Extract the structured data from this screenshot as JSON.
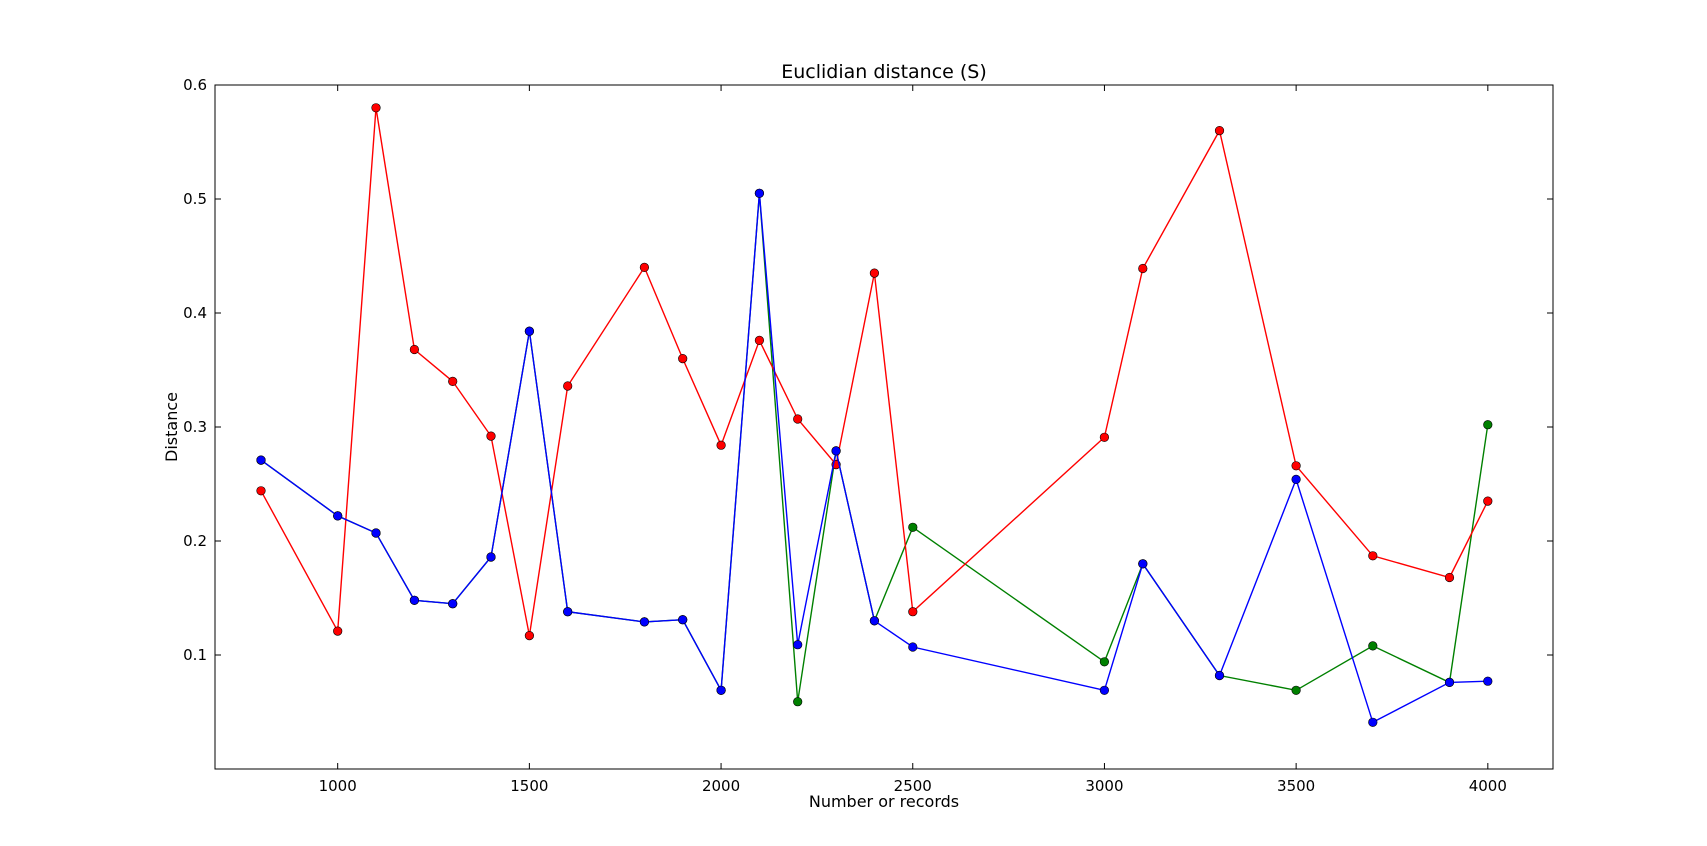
{
  "chart_data": {
    "type": "line",
    "title": "Euclidian distance (S)",
    "xlabel": "Number or records",
    "ylabel": "Distance",
    "xlim": [
      680,
      4170
    ],
    "ylim": [
      0.0,
      0.6
    ],
    "xticks": [
      1000,
      1500,
      2000,
      2500,
      3000,
      3500,
      4000
    ],
    "yticks": [
      0.1,
      0.2,
      0.3,
      0.4,
      0.5,
      0.6
    ],
    "xtick_labels": [
      "1000",
      "1500",
      "2000",
      "2500",
      "3000",
      "3500",
      "4000"
    ],
    "ytick_labels": [
      "0.1",
      "0.2",
      "0.3",
      "0.4",
      "0.5",
      "0.6"
    ],
    "grid": false,
    "legend": "none",
    "series": [
      {
        "color": "#008000",
        "points": [
          [
            800,
            0.271
          ],
          [
            1000,
            0.222
          ],
          [
            1100,
            0.207
          ],
          [
            1200,
            0.148
          ],
          [
            1300,
            0.145
          ],
          [
            1400,
            0.186
          ],
          [
            1500,
            0.384
          ],
          [
            1600,
            0.138
          ],
          [
            1800,
            0.129
          ],
          [
            1900,
            0.131
          ],
          [
            2000,
            0.069
          ],
          [
            2100,
            0.505
          ],
          [
            2200,
            0.059
          ],
          [
            2300,
            0.279
          ],
          [
            2400,
            0.13
          ],
          [
            2500,
            0.212
          ],
          [
            3000,
            0.094
          ],
          [
            3100,
            0.18
          ],
          [
            3300,
            0.082
          ],
          [
            3500,
            0.069
          ],
          [
            3700,
            0.108
          ],
          [
            3900,
            0.076
          ],
          [
            4000,
            0.302
          ]
        ]
      },
      {
        "color": "#ff0000",
        "points": [
          [
            800,
            0.244
          ],
          [
            1000,
            0.121
          ],
          [
            1100,
            0.58
          ],
          [
            1200,
            0.368
          ],
          [
            1300,
            0.34
          ],
          [
            1400,
            0.292
          ],
          [
            1500,
            0.117
          ],
          [
            1600,
            0.336
          ],
          [
            1800,
            0.44
          ],
          [
            1900,
            0.36
          ],
          [
            2000,
            0.284
          ],
          [
            2100,
            0.376
          ],
          [
            2200,
            0.307
          ],
          [
            2300,
            0.267
          ],
          [
            2400,
            0.435
          ],
          [
            2500,
            0.138
          ],
          [
            3000,
            0.291
          ],
          [
            3100,
            0.439
          ],
          [
            3300,
            0.56
          ],
          [
            3500,
            0.266
          ],
          [
            3700,
            0.187
          ],
          [
            3900,
            0.168
          ],
          [
            4000,
            0.235
          ]
        ]
      },
      {
        "color": "#0000ff",
        "points": [
          [
            800,
            0.271
          ],
          [
            1000,
            0.222
          ],
          [
            1100,
            0.207
          ],
          [
            1200,
            0.148
          ],
          [
            1300,
            0.145
          ],
          [
            1400,
            0.186
          ],
          [
            1500,
            0.384
          ],
          [
            1600,
            0.138
          ],
          [
            1800,
            0.129
          ],
          [
            1900,
            0.131
          ],
          [
            2000,
            0.069
          ],
          [
            2100,
            0.505
          ],
          [
            2200,
            0.109
          ],
          [
            2300,
            0.279
          ],
          [
            2400,
            0.13
          ],
          [
            2500,
            0.107
          ],
          [
            3000,
            0.069
          ],
          [
            3100,
            0.18
          ],
          [
            3300,
            0.082
          ],
          [
            3500,
            0.254
          ],
          [
            3700,
            0.041
          ],
          [
            3900,
            0.076
          ],
          [
            4000,
            0.077
          ]
        ]
      }
    ]
  }
}
